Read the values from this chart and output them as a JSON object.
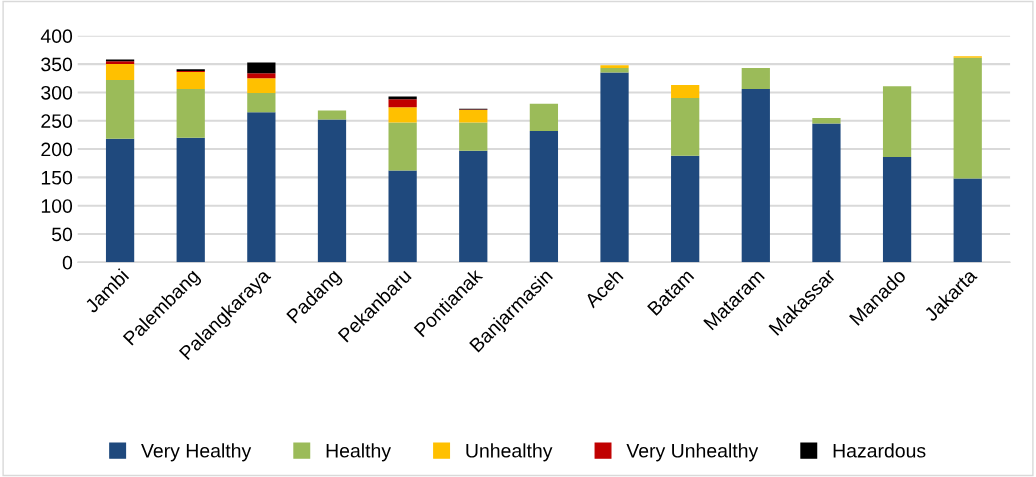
{
  "chart_data": {
    "type": "bar",
    "stacked": true,
    "categories": [
      "Jambi",
      "Palembang",
      "Palangkaraya",
      "Padang",
      "Pekanbaru",
      "Pontianak",
      "Banjarmasin",
      "Aceh",
      "Batam",
      "Mataram",
      "Makassar",
      "Manado",
      "Jakarta"
    ],
    "series": [
      {
        "name": "Very Healthy",
        "color": "#1f497d",
        "values": [
          218,
          220,
          265,
          252,
          162,
          197,
          232,
          335,
          188,
          306,
          245,
          186,
          148
        ]
      },
      {
        "name": "Healthy",
        "color": "#9bbb59",
        "values": [
          104,
          86,
          34,
          16,
          85,
          50,
          48,
          8,
          102,
          37,
          10,
          125,
          213
        ]
      },
      {
        "name": "Unhealthy",
        "color": "#ffc000",
        "values": [
          28,
          30,
          26,
          0,
          27,
          22,
          0,
          5,
          23,
          0,
          0,
          0,
          3
        ]
      },
      {
        "name": "Very Unhealthy",
        "color": "#c00000",
        "values": [
          5,
          2,
          9,
          0,
          14,
          1,
          0,
          0,
          0,
          0,
          0,
          0,
          0
        ]
      },
      {
        "name": "Hazardous",
        "color": "#000000",
        "values": [
          3,
          3,
          19,
          0,
          5,
          1,
          0,
          0,
          0,
          0,
          0,
          0,
          0
        ]
      }
    ],
    "ylim": [
      0,
      400
    ],
    "yticks": [
      0,
      50,
      100,
      150,
      200,
      250,
      300,
      350,
      400
    ],
    "grid": "y",
    "legend": "bottom"
  }
}
